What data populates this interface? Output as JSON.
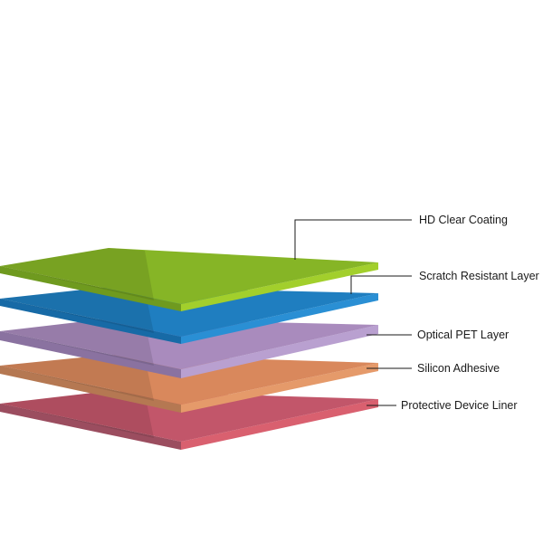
{
  "diagram": {
    "layers": [
      {
        "id": "protective-device-liner",
        "label": "Protective Device Liner",
        "color_top": "#c2566a",
        "color_front": "#9b4d5f",
        "color_edge": "#d9606f"
      },
      {
        "id": "silicon-adhesive",
        "label": "Silicon Adhesive",
        "color_top": "#d9885c",
        "color_front": "#b57852",
        "color_edge": "#e59a6a"
      },
      {
        "id": "optical-pet-layer",
        "label": "Optical PET Layer",
        "color_top": "#a98bbd",
        "color_front": "#8a72a0",
        "color_edge": "#b9a0d0"
      },
      {
        "id": "scratch-resistant-layer",
        "label": "Scratch Resistant Layer",
        "color_top": "#1f7ec0",
        "color_front": "#176aa6",
        "color_edge": "#2a8fd4"
      },
      {
        "id": "hd-clear-coating",
        "label": "HD Clear Coating",
        "color_top": "#86b526",
        "color_front": "#6f9a1f",
        "color_edge": "#a2cf2c"
      }
    ]
  }
}
